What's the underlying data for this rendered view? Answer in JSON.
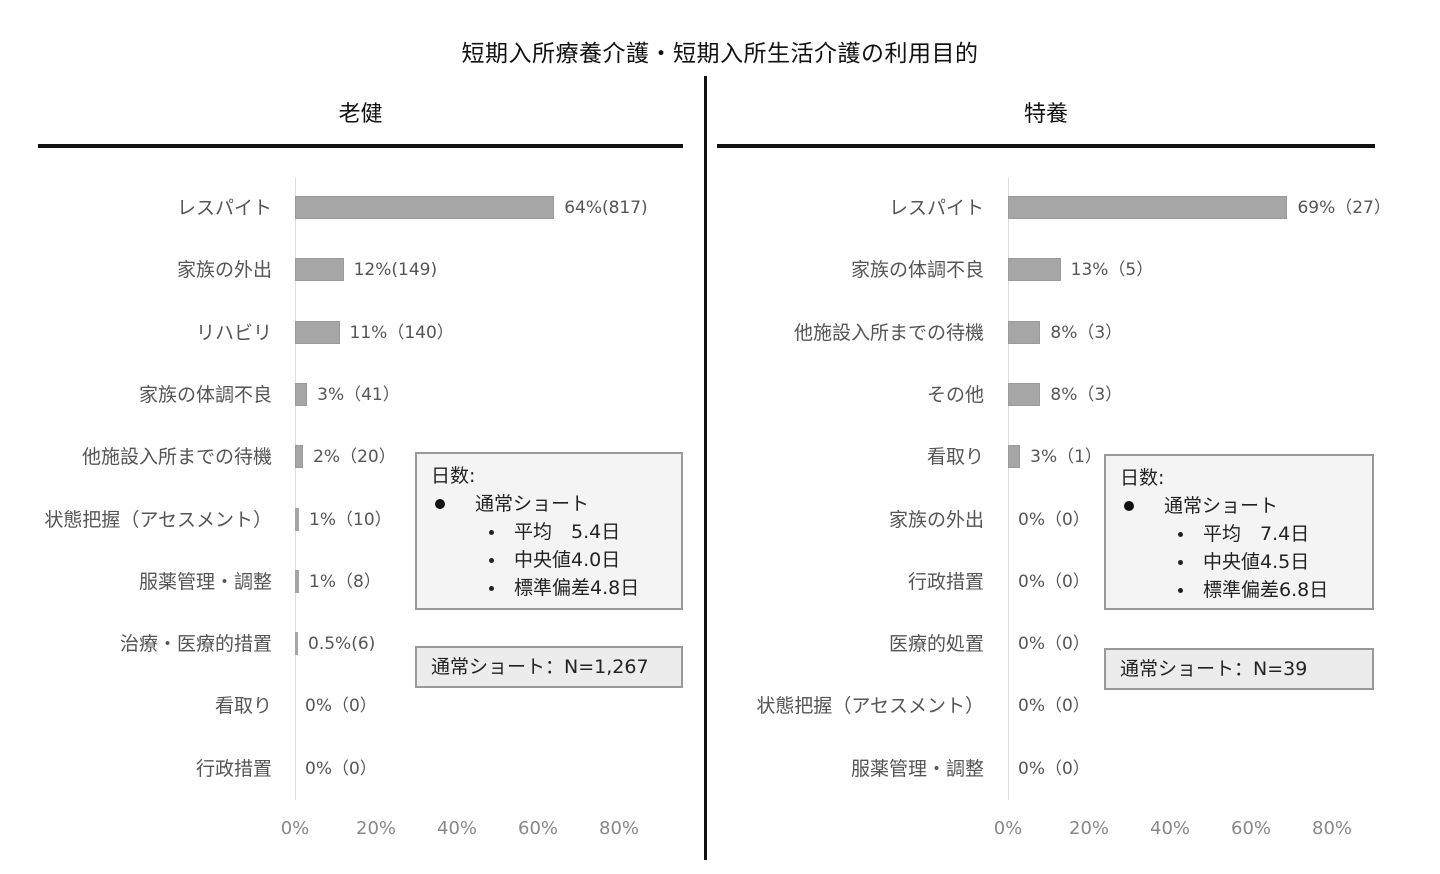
{
  "title": "短期入所療養介護・短期入所生活介護の利用目的",
  "chart_data": [
    {
      "type": "bar",
      "orientation": "horizontal",
      "title": "老健",
      "categories": [
        "レスパイト",
        "家族の外出",
        "リハビリ",
        "家族の体調不良",
        "他施設入所までの待機",
        "状態把握（アセスメント）",
        "服薬管理・調整",
        "治療・医療的措置",
        "看取り",
        "行政措置"
      ],
      "values": [
        64,
        12,
        11,
        3,
        2,
        1,
        1,
        0.5,
        0,
        0
      ],
      "counts": [
        817,
        149,
        140,
        41,
        20,
        10,
        8,
        6,
        0,
        0
      ],
      "labels": [
        "64%(817)",
        "12%(149)",
        "11%（140）",
        "3%（41）",
        "2%（20）",
        "1%（10）",
        "1%（8）",
        "0.5%(6)",
        "0%（0）",
        "0%（0）"
      ],
      "xlabel": "",
      "ylabel": "",
      "xticks": [
        "0%",
        "20%",
        "40%",
        "60%",
        "80%"
      ],
      "xlim": [
        0,
        80
      ],
      "grid": false,
      "annotations": {
        "days_box": {
          "heading": "日数:",
          "group": "通常ショート",
          "items": [
            "平均　5.4日",
            "中央値4.0日",
            "標準偏差4.8日"
          ]
        },
        "n_box": "通常ショート：N=1,267"
      }
    },
    {
      "type": "bar",
      "orientation": "horizontal",
      "title": "特養",
      "categories": [
        "レスパイト",
        "家族の体調不良",
        "他施設入所までの待機",
        "その他",
        "看取り",
        "家族の外出",
        "行政措置",
        "医療的処置",
        "状態把握（アセスメント）",
        "服薬管理・調整"
      ],
      "values": [
        69,
        13,
        8,
        8,
        3,
        0,
        0,
        0,
        0,
        0
      ],
      "counts": [
        27,
        5,
        3,
        3,
        1,
        0,
        0,
        0,
        0,
        0
      ],
      "labels": [
        "69%（27）",
        "13%（5）",
        "8%（3）",
        "8%（3）",
        "3%（1）",
        "0%（0）",
        "0%（0）",
        "0%（0）",
        "0%（0）",
        "0%（0）"
      ],
      "xlabel": "",
      "ylabel": "",
      "xticks": [
        "0%",
        "20%",
        "40%",
        "60%",
        "80%"
      ],
      "xlim": [
        0,
        80
      ],
      "grid": false,
      "annotations": {
        "days_box": {
          "heading": "日数:",
          "group": "通常ショート",
          "items": [
            "平均　7.4日",
            "中央値4.5日",
            "標準偏差6.8日"
          ]
        },
        "n_box": "通常ショート：N=39"
      }
    }
  ],
  "colors": {
    "bar": "#a6a6a6",
    "rule": "#111111",
    "box_bg": "#f4f4f4"
  }
}
